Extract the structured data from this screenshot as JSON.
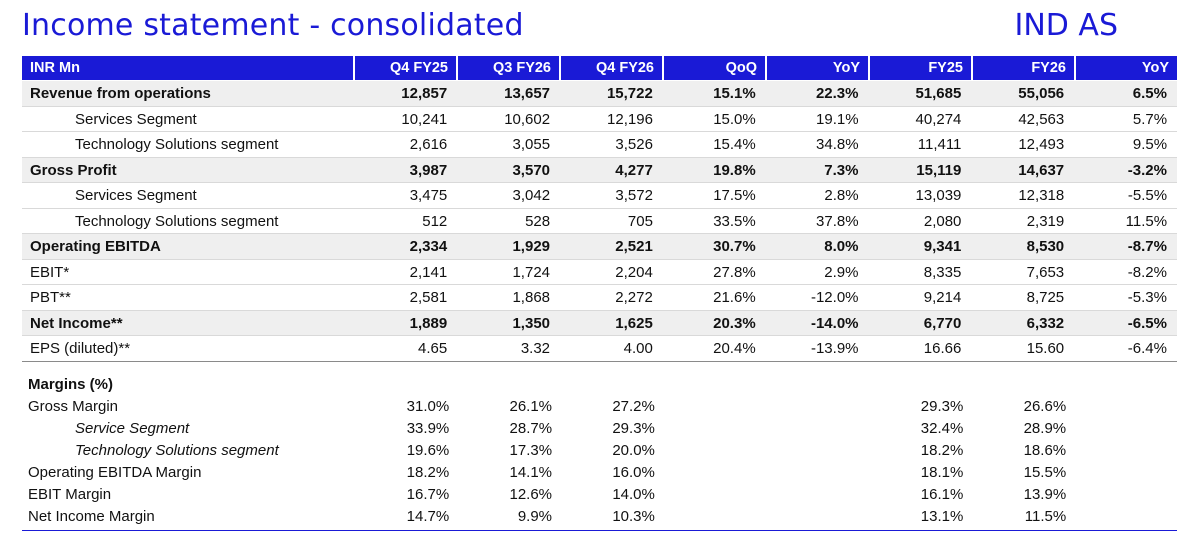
{
  "title": "Income statement - consolidated",
  "standard": "IND AS",
  "header": [
    "INR Mn",
    "Q4 FY25",
    "Q3 FY26",
    "Q4 FY26",
    "QoQ",
    "YoY",
    "FY25",
    "FY26",
    "YoY"
  ],
  "rows": [
    {
      "label": "Revenue from operations",
      "values": [
        "12,857",
        "13,657",
        "15,722",
        "15.1%",
        "22.3%",
        "51,685",
        "55,056",
        "6.5%"
      ]
    },
    {
      "label": "Services Segment",
      "values": [
        "10,241",
        "10,602",
        "12,196",
        "15.0%",
        "19.1%",
        "40,274",
        "42,563",
        "5.7%"
      ]
    },
    {
      "label": "Technology Solutions segment",
      "values": [
        "2,616",
        "3,055",
        "3,526",
        "15.4%",
        "34.8%",
        "11,411",
        "12,493",
        "9.5%"
      ]
    },
    {
      "label": "Gross Profit",
      "values": [
        "3,987",
        "3,570",
        "4,277",
        "19.8%",
        "7.3%",
        "15,119",
        "14,637",
        "-3.2%"
      ]
    },
    {
      "label": "Services Segment",
      "values": [
        "3,475",
        "3,042",
        "3,572",
        "17.5%",
        "2.8%",
        "13,039",
        "12,318",
        "-5.5%"
      ]
    },
    {
      "label": "Technology Solutions segment",
      "values": [
        "512",
        "528",
        "705",
        "33.5%",
        "37.8%",
        "2,080",
        "2,319",
        "11.5%"
      ]
    },
    {
      "label": "Operating EBITDA",
      "values": [
        "2,334",
        "1,929",
        "2,521",
        "30.7%",
        "8.0%",
        "9,341",
        "8,530",
        "-8.7%"
      ]
    },
    {
      "label": "EBIT*",
      "values": [
        "2,141",
        "1,724",
        "2,204",
        "27.8%",
        "2.9%",
        "8,335",
        "7,653",
        "-8.2%"
      ]
    },
    {
      "label": "PBT**",
      "values": [
        "2,581",
        "1,868",
        "2,272",
        "21.6%",
        "-12.0%",
        "9,214",
        "8,725",
        "-5.3%"
      ]
    },
    {
      "label": "Net Income**",
      "values": [
        "1,889",
        "1,350",
        "1,625",
        "20.3%",
        "-14.0%",
        "6,770",
        "6,332",
        "-6.5%"
      ]
    },
    {
      "label": "EPS (diluted)**",
      "values": [
        "4.65",
        "3.32",
        "4.00",
        "20.4%",
        "-13.9%",
        "16.66",
        "15.60",
        "-6.4%"
      ]
    }
  ],
  "margins": {
    "heading": "Margins (%)",
    "rows": [
      {
        "label": "Gross Margin",
        "values": [
          "31.0%",
          "26.1%",
          "27.2%",
          "",
          "",
          "29.3%",
          "26.6%",
          ""
        ]
      },
      {
        "label": "Service Segment",
        "values": [
          "33.9%",
          "28.7%",
          "29.3%",
          "",
          "",
          "32.4%",
          "28.9%",
          ""
        ]
      },
      {
        "label": "Technology Solutions segment",
        "values": [
          "19.6%",
          "17.3%",
          "20.0%",
          "",
          "",
          "18.2%",
          "18.6%",
          ""
        ]
      },
      {
        "label": "Operating EBITDA Margin",
        "values": [
          "18.2%",
          "14.1%",
          "16.0%",
          "",
          "",
          "18.1%",
          "15.5%",
          ""
        ]
      },
      {
        "label": "EBIT Margin",
        "values": [
          "16.7%",
          "12.6%",
          "14.0%",
          "",
          "",
          "16.1%",
          "13.9%",
          ""
        ]
      },
      {
        "label": "Net Income Margin",
        "values": [
          "14.7%",
          "9.9%",
          "10.3%",
          "",
          "",
          "13.1%",
          "11.5%",
          ""
        ]
      }
    ]
  }
}
